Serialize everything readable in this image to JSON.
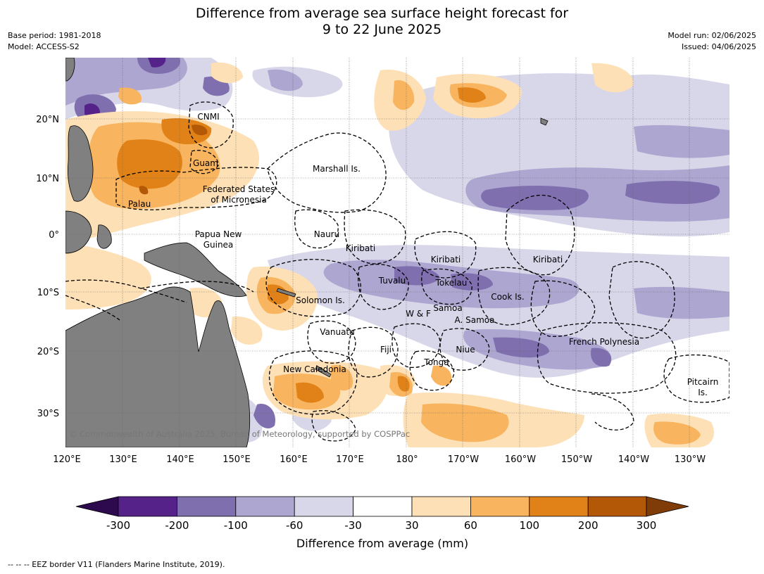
{
  "title_line1": "Difference from average sea surface height forecast for",
  "title_line2": "9 to 22 June 2025",
  "meta_left": [
    "Base period: 1981-2018",
    "Model: ACCESS-S2"
  ],
  "meta_right": [
    "Model run: 02/06/2025",
    "Issued: 04/06/2025"
  ],
  "lon_ticks": [
    "120°E",
    "130°E",
    "140°E",
    "150°E",
    "160°E",
    "170°E",
    "180°",
    "170°W",
    "160°W",
    "150°W",
    "140°W",
    "130°W"
  ],
  "lat_ticks": [
    "20°N",
    "10°N",
    "0°",
    "10°S",
    "20°S",
    "30°S"
  ],
  "places": {
    "cnmi": "CNMI",
    "guam": "Guam",
    "marshall": "Marshall Is.",
    "fsm1": "Federated States",
    "fsm2": "of Micronesia",
    "palau": "Palau",
    "png1": "Papua New",
    "png2": "Guinea",
    "nauru": "Nauru",
    "kiribati_w": "Kiribati",
    "kiribati_c": "Kiribati",
    "kiribati_e": "Kiribati",
    "tuvalu": "Tuvalu",
    "tokelau": "Tokelau",
    "cook": "Cook Is.",
    "solomon": "Solomon Is.",
    "samoa": "Samoa",
    "wf": "W & F",
    "asamoa": "A. Samoa",
    "vanuatu": "Vanuatu",
    "fiji": "Fiji",
    "niue": "Niue",
    "fpoly": "French Polynesia",
    "tonga": "Tonga",
    "newcal": "New Caledonia",
    "pitcairn1": "Pitcairn",
    "pitcairn2": "Is."
  },
  "copyright": "© Commonwealth of Australia 2025, Bureau of Meteorology, supported by COSPPac",
  "colorbar": {
    "labels": [
      "-300",
      "-200",
      "-100",
      "-60",
      "-30",
      "30",
      "60",
      "100",
      "200",
      "300"
    ],
    "colors": [
      "#2d0a4d",
      "#55228a",
      "#7f6fae",
      "#ada6d0",
      "#d8d7ea",
      "#ffffff",
      "#fde0b5",
      "#f8b45e",
      "#e08217",
      "#b35806",
      "#7f3b08"
    ],
    "title": "Difference from average (mm)"
  },
  "footnote": "-- -- -- EEZ border V11 (Flanders Marine Institute, 2019)."
}
